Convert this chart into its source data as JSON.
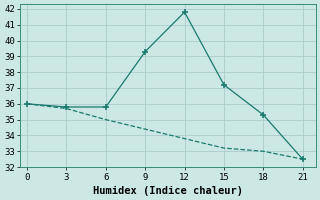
{
  "xlabel": "Humidex (Indice chaleur)",
  "line1_x": [
    0,
    3,
    6,
    9,
    12,
    15,
    18,
    21
  ],
  "line1_y": [
    36.0,
    35.8,
    35.8,
    39.3,
    41.8,
    37.2,
    35.3,
    32.5
  ],
  "line2_x": [
    0,
    3,
    6,
    9,
    12,
    15,
    18,
    21
  ],
  "line2_y": [
    36.0,
    35.7,
    35.0,
    34.4,
    33.8,
    33.2,
    33.0,
    32.5
  ],
  "line_color": "#1a7a6e",
  "bg_color": "#cce8e4",
  "grid_color": "#aacccc",
  "xlim": [
    -0.5,
    22
  ],
  "ylim": [
    32,
    42.3
  ],
  "xticks": [
    0,
    3,
    6,
    9,
    12,
    15,
    18,
    21
  ],
  "yticks": [
    32,
    33,
    34,
    35,
    36,
    37,
    38,
    39,
    40,
    41,
    42
  ],
  "tick_fontsize": 6.5,
  "xlabel_fontsize": 7.5
}
